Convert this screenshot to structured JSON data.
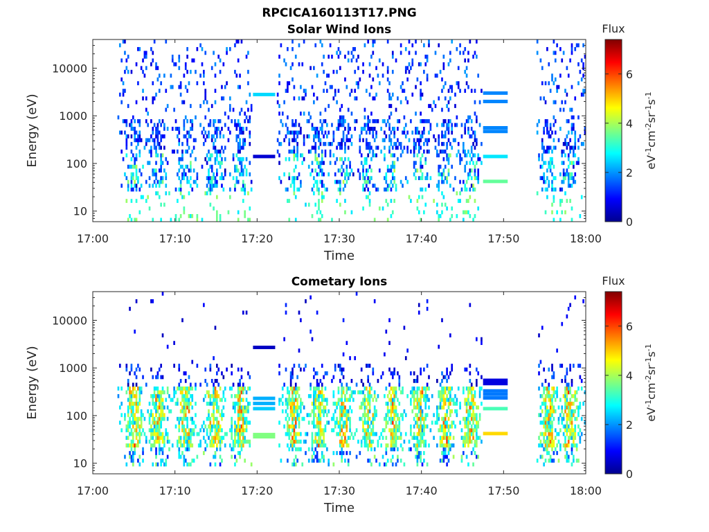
{
  "figure": {
    "title": "RPCICA160113T17.PNG"
  },
  "colors": {
    "axis": "#262626",
    "colormap": "jet"
  },
  "chart_data": [
    {
      "type": "heatmap",
      "title": "Solar Wind Ions",
      "xlabel": "Time",
      "ylabel": "Energy (eV)",
      "x_ticks": [
        "17:00",
        "17:10",
        "17:20",
        "17:30",
        "17:40",
        "17:50",
        "18:00"
      ],
      "x_range_min": [
        0,
        60
      ],
      "y_scale": "log",
      "y_ticks": [
        "10",
        "100",
        "1000",
        "10000"
      ],
      "y_range": [
        6,
        40000
      ],
      "colorbar": {
        "title": "Flux",
        "label": "eV⁻¹cm⁻²sr⁻¹s⁻¹",
        "ticks": [
          "0",
          "2",
          "4",
          "6"
        ],
        "range": [
          0,
          7.4
        ]
      },
      "data_intervals_min": [
        [
          3,
          19.5
        ],
        [
          22.5,
          47.5
        ],
        [
          54,
          60
        ]
      ],
      "constant_lines": [
        {
          "t0": 19.5,
          "t1": 22.2,
          "energy": 2800,
          "flux": 2.5
        },
        {
          "t0": 19.5,
          "t1": 22.2,
          "energy": 140,
          "flux": 0.6
        },
        {
          "t0": 47.5,
          "t1": 50.5,
          "energy": 3000,
          "flux": 1.9
        },
        {
          "t0": 47.5,
          "t1": 50.5,
          "energy": 2000,
          "flux": 1.9
        },
        {
          "t0": 47.5,
          "t1": 50.5,
          "energy": 560,
          "flux": 1.9
        },
        {
          "t0": 47.5,
          "t1": 50.5,
          "energy": 470,
          "flux": 1.9
        },
        {
          "t0": 47.5,
          "t1": 50.5,
          "energy": 140,
          "flux": 2.6
        },
        {
          "t0": 47.5,
          "t1": 50.5,
          "energy": 42,
          "flux": 3.5
        }
      ],
      "burst_centers_min": [
        5,
        8,
        11.3,
        14.8,
        18,
        24.5,
        27.5,
        30.5,
        33.5,
        36.5,
        39.8,
        43,
        46,
        55.5,
        58
      ],
      "peak_flux": 6.8
    },
    {
      "type": "heatmap",
      "title": "Cometary Ions",
      "xlabel": "Time",
      "ylabel": "Energy (eV)",
      "x_ticks": [
        "17:00",
        "17:10",
        "17:20",
        "17:30",
        "17:40",
        "17:50",
        "18:00"
      ],
      "x_range_min": [
        0,
        60
      ],
      "y_scale": "log",
      "y_ticks": [
        "10",
        "100",
        "1000",
        "10000"
      ],
      "y_range": [
        6,
        40000
      ],
      "colorbar": {
        "title": "Flux",
        "label": "eV⁻¹cm⁻²sr⁻¹s⁻¹",
        "ticks": [
          "0",
          "2",
          "4",
          "6"
        ],
        "range": [
          0,
          7.4
        ]
      },
      "data_intervals_min": [
        [
          3,
          19.5
        ],
        [
          22.5,
          47.5
        ],
        [
          54,
          60
        ]
      ],
      "constant_lines": [
        {
          "t0": 19.5,
          "t1": 22.2,
          "energy": 2700,
          "flux": 0.5
        },
        {
          "t0": 19.5,
          "t1": 22.2,
          "energy": 230,
          "flux": 2.2
        },
        {
          "t0": 19.5,
          "t1": 22.2,
          "energy": 180,
          "flux": 2.2
        },
        {
          "t0": 19.5,
          "t1": 22.2,
          "energy": 140,
          "flux": 2.4
        },
        {
          "t0": 19.5,
          "t1": 22.2,
          "energy": 40,
          "flux": 3.7
        },
        {
          "t0": 19.5,
          "t1": 22.2,
          "energy": 36,
          "flux": 3.7
        },
        {
          "t0": 47.5,
          "t1": 50.5,
          "energy": 550,
          "flux": 0.7
        },
        {
          "t0": 47.5,
          "t1": 50.5,
          "energy": 470,
          "flux": 0.7
        },
        {
          "t0": 47.5,
          "t1": 50.5,
          "energy": 330,
          "flux": 1.8
        },
        {
          "t0": 47.5,
          "t1": 50.5,
          "energy": 280,
          "flux": 1.8
        },
        {
          "t0": 47.5,
          "t1": 50.5,
          "energy": 235,
          "flux": 1.8
        },
        {
          "t0": 47.5,
          "t1": 50.5,
          "energy": 140,
          "flux": 3.3
        },
        {
          "t0": 47.5,
          "t1": 50.5,
          "energy": 42,
          "flux": 4.9
        }
      ],
      "burst_centers_min": [
        5,
        8,
        11.3,
        14.8,
        18,
        24.5,
        27.5,
        30.5,
        33.5,
        36.5,
        39.8,
        43,
        46,
        55.5,
        58
      ],
      "peak_flux": 7.2
    }
  ]
}
